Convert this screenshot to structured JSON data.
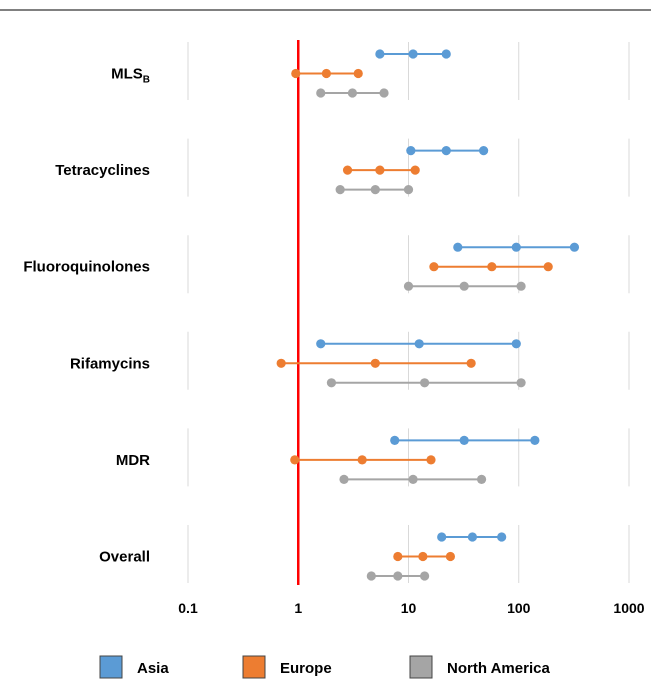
{
  "chart_data": {
    "type": "dumbbell",
    "x_scale": "log",
    "xlim": [
      0.1,
      1000
    ],
    "xticks": [
      "0.1",
      "1",
      "10",
      "100",
      "1000"
    ],
    "reference_line": {
      "x": 1,
      "color": "#ff0000"
    },
    "grid": "vertical",
    "legend_position": "bottom",
    "categories": [
      {
        "name": "MLS",
        "sub": "B"
      },
      {
        "name": "Tetracyclines",
        "sub": ""
      },
      {
        "name": "Fluoroquinolones",
        "sub": ""
      },
      {
        "name": "Rifamycins",
        "sub": ""
      },
      {
        "name": "MDR",
        "sub": ""
      },
      {
        "name": "Overall",
        "sub": ""
      }
    ],
    "series": [
      {
        "name": "Asia",
        "color": "#5b9bd5",
        "values": [
          [
            5.5,
            11,
            22
          ],
          [
            10.5,
            22,
            48
          ],
          [
            28,
            95,
            320
          ],
          [
            1.6,
            12.5,
            95
          ],
          [
            7.5,
            32,
            140
          ],
          [
            20,
            38,
            70
          ]
        ]
      },
      {
        "name": "Europe",
        "color": "#ed7d31",
        "values": [
          [
            0.95,
            1.8,
            3.5
          ],
          [
            2.8,
            5.5,
            11.5
          ],
          [
            17,
            57,
            185
          ],
          [
            0.7,
            5,
            37
          ],
          [
            0.93,
            3.8,
            16
          ],
          [
            8,
            13.5,
            24
          ]
        ]
      },
      {
        "name": "North America",
        "color": "#a5a5a5",
        "values": [
          [
            1.6,
            3.1,
            6
          ],
          [
            2.4,
            5,
            10
          ],
          [
            10,
            32,
            105
          ],
          [
            2,
            14,
            105
          ],
          [
            2.6,
            11,
            46
          ],
          [
            4.6,
            8,
            14
          ]
        ]
      }
    ]
  }
}
